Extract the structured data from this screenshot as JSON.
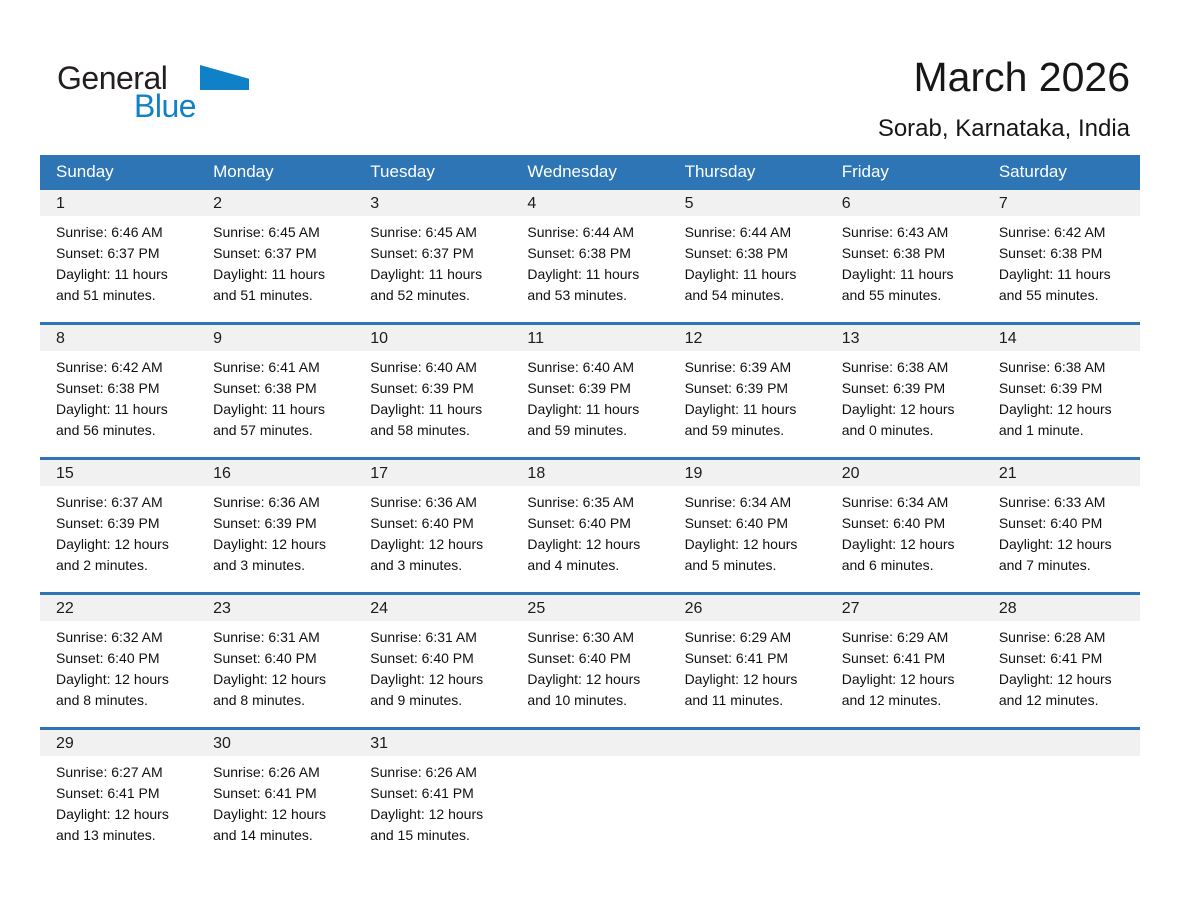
{
  "logo": {
    "general": "General",
    "blue": "Blue"
  },
  "header": {
    "title": "March 2026",
    "subtitle": "Sorab, Karnataka, India"
  },
  "colors": {
    "header_bar": "#2E75B6",
    "week_separator": "#2E75B6",
    "day_band": "#F1F1F1",
    "logo_blue": "#1080C7",
    "logo_text": "#231F20",
    "header_text": "#FFFFFF"
  },
  "weekdays": [
    "Sunday",
    "Monday",
    "Tuesday",
    "Wednesday",
    "Thursday",
    "Friday",
    "Saturday"
  ],
  "weeks": [
    [
      {
        "day": "1",
        "sunrise": "Sunrise: 6:46 AM",
        "sunset": "Sunset: 6:37 PM",
        "daylight": [
          "Daylight: 11 hours",
          "and 51 minutes."
        ]
      },
      {
        "day": "2",
        "sunrise": "Sunrise: 6:45 AM",
        "sunset": "Sunset: 6:37 PM",
        "daylight": [
          "Daylight: 11 hours",
          "and 51 minutes."
        ]
      },
      {
        "day": "3",
        "sunrise": "Sunrise: 6:45 AM",
        "sunset": "Sunset: 6:37 PM",
        "daylight": [
          "Daylight: 11 hours",
          "and 52 minutes."
        ]
      },
      {
        "day": "4",
        "sunrise": "Sunrise: 6:44 AM",
        "sunset": "Sunset: 6:38 PM",
        "daylight": [
          "Daylight: 11 hours",
          "and 53 minutes."
        ]
      },
      {
        "day": "5",
        "sunrise": "Sunrise: 6:44 AM",
        "sunset": "Sunset: 6:38 PM",
        "daylight": [
          "Daylight: 11 hours",
          "and 54 minutes."
        ]
      },
      {
        "day": "6",
        "sunrise": "Sunrise: 6:43 AM",
        "sunset": "Sunset: 6:38 PM",
        "daylight": [
          "Daylight: 11 hours",
          "and 55 minutes."
        ]
      },
      {
        "day": "7",
        "sunrise": "Sunrise: 6:42 AM",
        "sunset": "Sunset: 6:38 PM",
        "daylight": [
          "Daylight: 11 hours",
          "and 55 minutes."
        ]
      }
    ],
    [
      {
        "day": "8",
        "sunrise": "Sunrise: 6:42 AM",
        "sunset": "Sunset: 6:38 PM",
        "daylight": [
          "Daylight: 11 hours",
          "and 56 minutes."
        ]
      },
      {
        "day": "9",
        "sunrise": "Sunrise: 6:41 AM",
        "sunset": "Sunset: 6:38 PM",
        "daylight": [
          "Daylight: 11 hours",
          "and 57 minutes."
        ]
      },
      {
        "day": "10",
        "sunrise": "Sunrise: 6:40 AM",
        "sunset": "Sunset: 6:39 PM",
        "daylight": [
          "Daylight: 11 hours",
          "and 58 minutes."
        ]
      },
      {
        "day": "11",
        "sunrise": "Sunrise: 6:40 AM",
        "sunset": "Sunset: 6:39 PM",
        "daylight": [
          "Daylight: 11 hours",
          "and 59 minutes."
        ]
      },
      {
        "day": "12",
        "sunrise": "Sunrise: 6:39 AM",
        "sunset": "Sunset: 6:39 PM",
        "daylight": [
          "Daylight: 11 hours",
          "and 59 minutes."
        ]
      },
      {
        "day": "13",
        "sunrise": "Sunrise: 6:38 AM",
        "sunset": "Sunset: 6:39 PM",
        "daylight": [
          "Daylight: 12 hours",
          "and 0 minutes."
        ]
      },
      {
        "day": "14",
        "sunrise": "Sunrise: 6:38 AM",
        "sunset": "Sunset: 6:39 PM",
        "daylight": [
          "Daylight: 12 hours",
          "and 1 minute."
        ]
      }
    ],
    [
      {
        "day": "15",
        "sunrise": "Sunrise: 6:37 AM",
        "sunset": "Sunset: 6:39 PM",
        "daylight": [
          "Daylight: 12 hours",
          "and 2 minutes."
        ]
      },
      {
        "day": "16",
        "sunrise": "Sunrise: 6:36 AM",
        "sunset": "Sunset: 6:39 PM",
        "daylight": [
          "Daylight: 12 hours",
          "and 3 minutes."
        ]
      },
      {
        "day": "17",
        "sunrise": "Sunrise: 6:36 AM",
        "sunset": "Sunset: 6:40 PM",
        "daylight": [
          "Daylight: 12 hours",
          "and 3 minutes."
        ]
      },
      {
        "day": "18",
        "sunrise": "Sunrise: 6:35 AM",
        "sunset": "Sunset: 6:40 PM",
        "daylight": [
          "Daylight: 12 hours",
          "and 4 minutes."
        ]
      },
      {
        "day": "19",
        "sunrise": "Sunrise: 6:34 AM",
        "sunset": "Sunset: 6:40 PM",
        "daylight": [
          "Daylight: 12 hours",
          "and 5 minutes."
        ]
      },
      {
        "day": "20",
        "sunrise": "Sunrise: 6:34 AM",
        "sunset": "Sunset: 6:40 PM",
        "daylight": [
          "Daylight: 12 hours",
          "and 6 minutes."
        ]
      },
      {
        "day": "21",
        "sunrise": "Sunrise: 6:33 AM",
        "sunset": "Sunset: 6:40 PM",
        "daylight": [
          "Daylight: 12 hours",
          "and 7 minutes."
        ]
      }
    ],
    [
      {
        "day": "22",
        "sunrise": "Sunrise: 6:32 AM",
        "sunset": "Sunset: 6:40 PM",
        "daylight": [
          "Daylight: 12 hours",
          "and 8 minutes."
        ]
      },
      {
        "day": "23",
        "sunrise": "Sunrise: 6:31 AM",
        "sunset": "Sunset: 6:40 PM",
        "daylight": [
          "Daylight: 12 hours",
          "and 8 minutes."
        ]
      },
      {
        "day": "24",
        "sunrise": "Sunrise: 6:31 AM",
        "sunset": "Sunset: 6:40 PM",
        "daylight": [
          "Daylight: 12 hours",
          "and 9 minutes."
        ]
      },
      {
        "day": "25",
        "sunrise": "Sunrise: 6:30 AM",
        "sunset": "Sunset: 6:40 PM",
        "daylight": [
          "Daylight: 12 hours",
          "and 10 minutes."
        ]
      },
      {
        "day": "26",
        "sunrise": "Sunrise: 6:29 AM",
        "sunset": "Sunset: 6:41 PM",
        "daylight": [
          "Daylight: 12 hours",
          "and 11 minutes."
        ]
      },
      {
        "day": "27",
        "sunrise": "Sunrise: 6:29 AM",
        "sunset": "Sunset: 6:41 PM",
        "daylight": [
          "Daylight: 12 hours",
          "and 12 minutes."
        ]
      },
      {
        "day": "28",
        "sunrise": "Sunrise: 6:28 AM",
        "sunset": "Sunset: 6:41 PM",
        "daylight": [
          "Daylight: 12 hours",
          "and 12 minutes."
        ]
      }
    ],
    [
      {
        "day": "29",
        "sunrise": "Sunrise: 6:27 AM",
        "sunset": "Sunset: 6:41 PM",
        "daylight": [
          "Daylight: 12 hours",
          "and 13 minutes."
        ]
      },
      {
        "day": "30",
        "sunrise": "Sunrise: 6:26 AM",
        "sunset": "Sunset: 6:41 PM",
        "daylight": [
          "Daylight: 12 hours",
          "and 14 minutes."
        ]
      },
      {
        "day": "31",
        "sunrise": "Sunrise: 6:26 AM",
        "sunset": "Sunset: 6:41 PM",
        "daylight": [
          "Daylight: 12 hours",
          "and 15 minutes."
        ]
      },
      null,
      null,
      null,
      null
    ]
  ]
}
